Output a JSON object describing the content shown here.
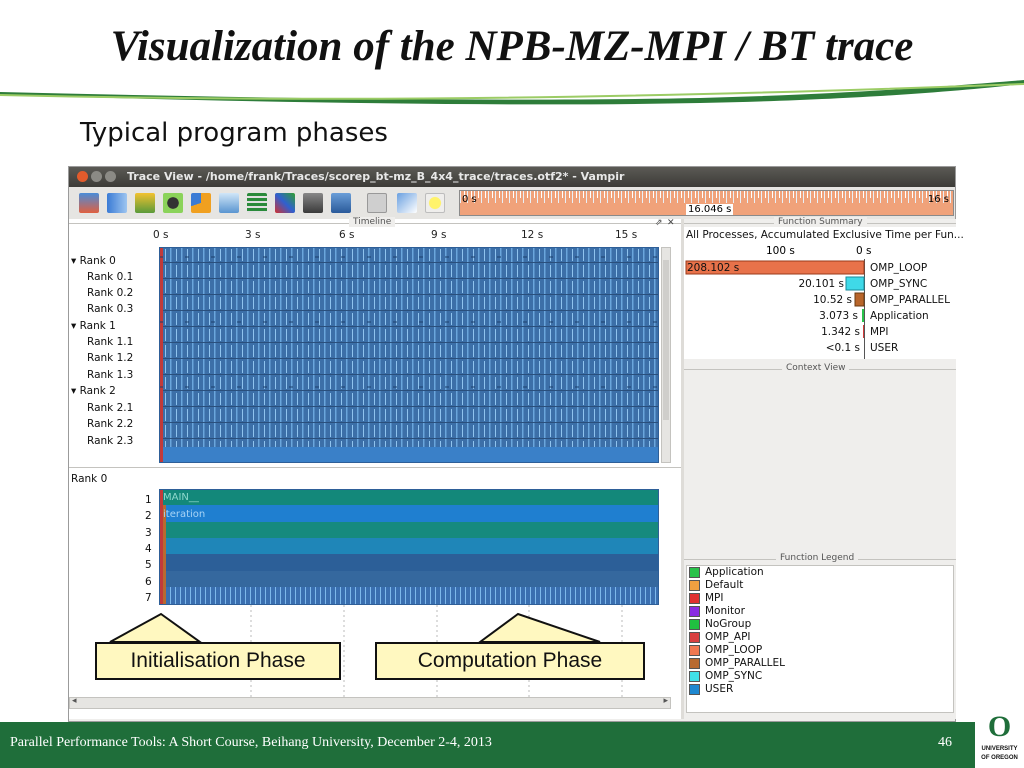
{
  "slide": {
    "title": "Visualization of the NPB-MZ-MPI / BT trace",
    "subtitle": "Typical program phases",
    "footer": "Parallel Performance Tools: A Short Course, Beihang University, December 2-4, 2013",
    "page_number": "46",
    "logo": {
      "letter": "O",
      "line1": "UNIVERSITY",
      "line2": "OF OREGON"
    }
  },
  "window": {
    "title": "Trace View - /home/frank/Traces/scorep_bt-mz_B_4x4_trace/traces.otf2* - Vampir"
  },
  "overview": {
    "start": "0 s",
    "end": "16 s",
    "cursor": "16.046 s"
  },
  "timeline": {
    "label": "Timeline",
    "ticks": [
      "0 s",
      "3 s",
      "6 s",
      "9 s",
      "12 s",
      "15 s"
    ],
    "ranks": [
      {
        "label": "Rank 0",
        "children": [
          "Rank 0.1",
          "Rank 0.2",
          "Rank 0.3"
        ]
      },
      {
        "label": "Rank 1",
        "children": [
          "Rank 1.1",
          "Rank 1.2",
          "Rank 1.3"
        ]
      },
      {
        "label": "Rank 2",
        "children": [
          "Rank 2.1",
          "Rank 2.2",
          "Rank 2.3"
        ]
      }
    ]
  },
  "process_timeline": {
    "rank": "Rank 0",
    "levels": [
      "1",
      "2",
      "3",
      "4",
      "5",
      "6",
      "7"
    ],
    "level_text": [
      "MAIN__",
      "iteration"
    ]
  },
  "function_summary": {
    "label": "Function Summary",
    "header": "All Processes, Accumulated Exclusive Time per Fun...",
    "axis_left": "100 s",
    "axis_right": "0 s",
    "rows": [
      {
        "value": "208.102 s",
        "name": "OMP_LOOP",
        "color": "#e8724a"
      },
      {
        "value": "20.101 s",
        "name": "OMP_SYNC",
        "color": "#3fd9e8"
      },
      {
        "value": "10.52 s",
        "name": "OMP_PARALLEL",
        "color": "#b8652a"
      },
      {
        "value": "3.073 s",
        "name": "Application",
        "color": "#29c24a"
      },
      {
        "value": "1.342 s",
        "name": "MPI",
        "color": "#d23b3b"
      },
      {
        "value": "<0.1 s",
        "name": "USER",
        "color": "#1f7fc0"
      }
    ]
  },
  "context_view": {
    "label": "Context View"
  },
  "function_legend": {
    "label": "Function Legend",
    "items": [
      {
        "name": "Application",
        "color": "#29c24a"
      },
      {
        "name": "Default",
        "color": "#f0a040"
      },
      {
        "name": "MPI",
        "color": "#e03030"
      },
      {
        "name": "Monitor",
        "color": "#8a2be2"
      },
      {
        "name": "NoGroup",
        "color": "#20c040"
      },
      {
        "name": "OMP_API",
        "color": "#d84040"
      },
      {
        "name": "OMP_LOOP",
        "color": "#f07850"
      },
      {
        "name": "OMP_PARALLEL",
        "color": "#b86a30"
      },
      {
        "name": "OMP_SYNC",
        "color": "#40e0e8"
      },
      {
        "name": "USER",
        "color": "#1e88d0"
      }
    ]
  },
  "callouts": {
    "init": "Initialisation Phase",
    "compute": "Computation Phase"
  },
  "colors": {
    "accent_green": "#1f6e3a",
    "trace_blue": "#3a78b8",
    "overview_orange": "#f0a27a"
  }
}
